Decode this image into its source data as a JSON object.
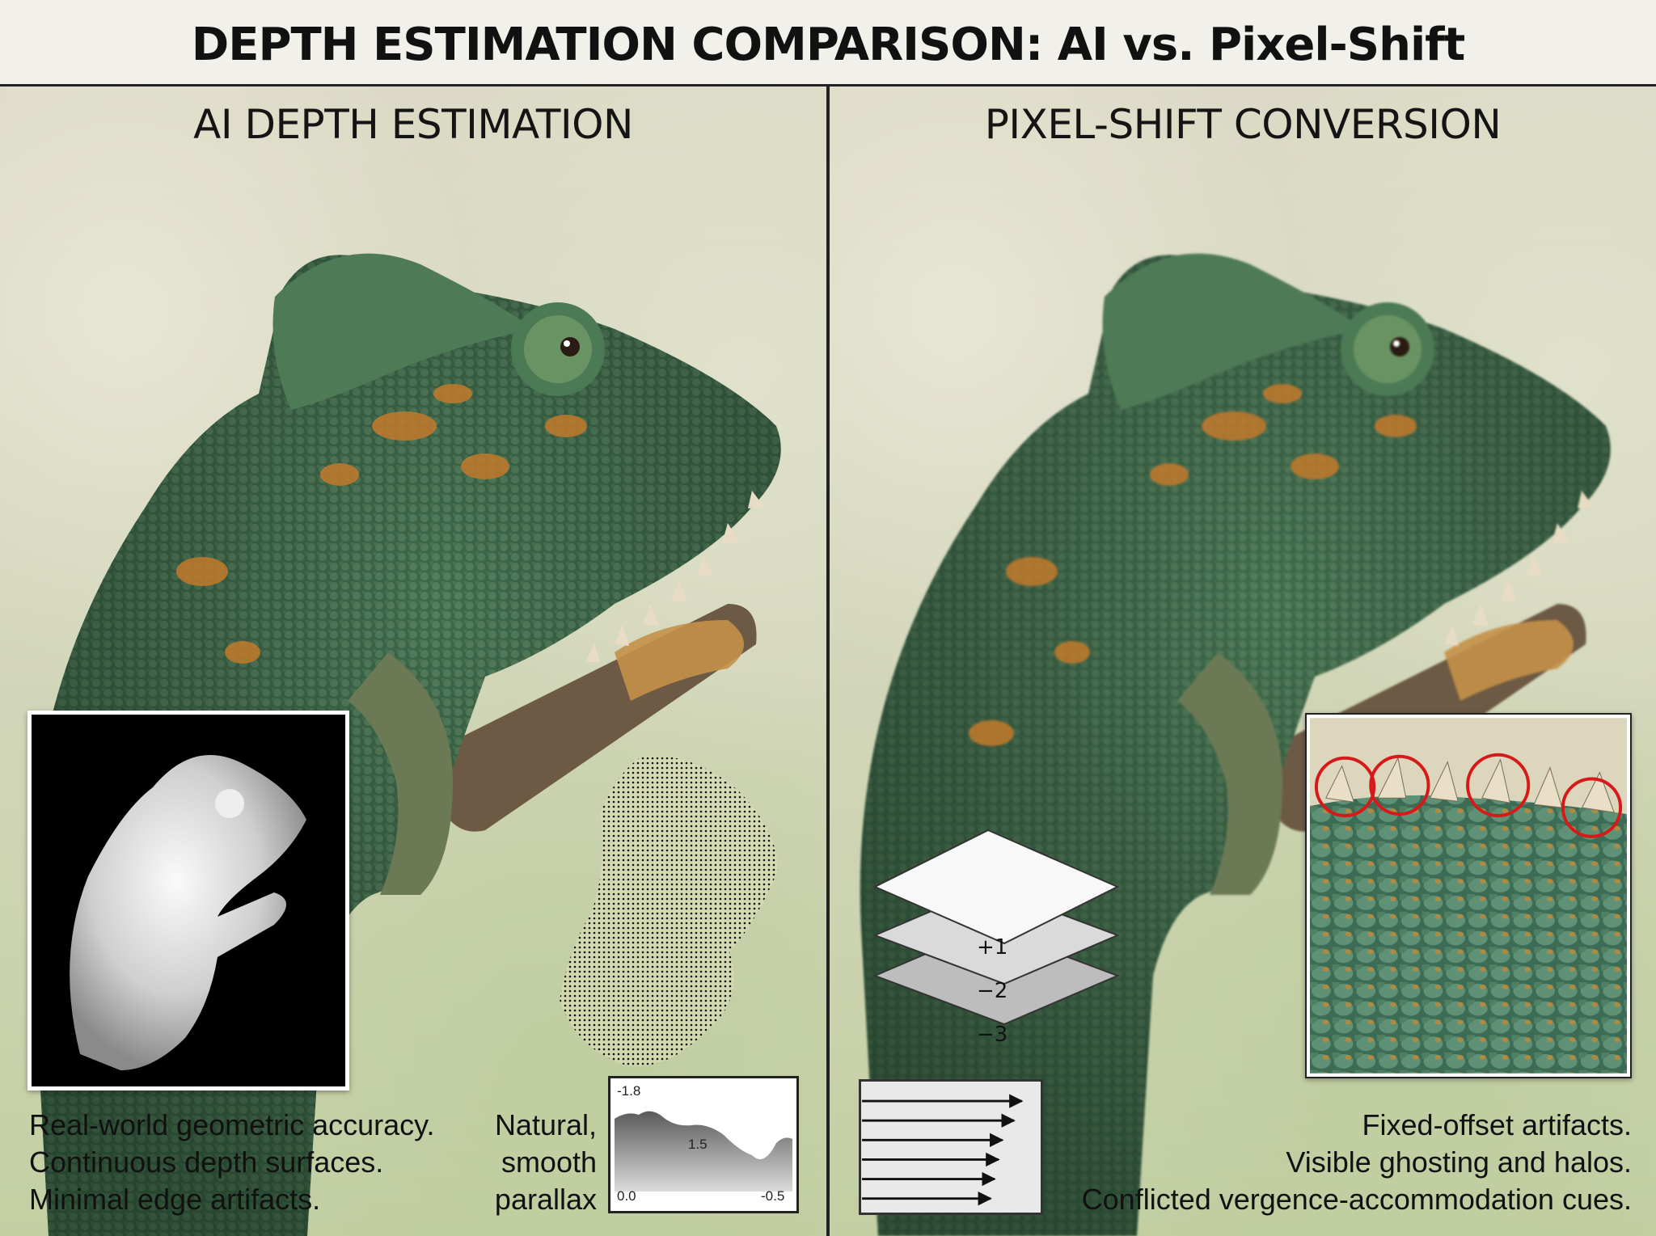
{
  "title": "DEPTH ESTIMATION COMPARISON: AI vs. Pixel-Shift",
  "left_panel": {
    "heading": "AI DEPTH ESTIMATION",
    "caption_lines": [
      "Real-world geometric accuracy.",
      "Continuous depth surfaces.",
      "Minimal edge artifacts."
    ],
    "parallax_caption_lines": [
      "Natural,",
      "smooth",
      "parallax"
    ],
    "parallax_graph": {
      "label_top_left": "-1.8",
      "label_middle": "1.5",
      "label_bottom_left": "0.0",
      "label_bottom_right": "-0.5"
    }
  },
  "right_panel": {
    "heading": "PIXEL-SHIFT CONVERSION",
    "layer_labels": [
      "+1",
      "−2",
      "−3"
    ],
    "caption_lines": [
      "Fixed-offset artifacts.",
      "Visible ghosting and halos.",
      "Conflicted vergence-accommodation cues."
    ]
  },
  "colors": {
    "artifact_circle": "#d61a1a",
    "chameleon_green": "#3f6b4c",
    "chameleon_orange": "#c27a2c"
  }
}
